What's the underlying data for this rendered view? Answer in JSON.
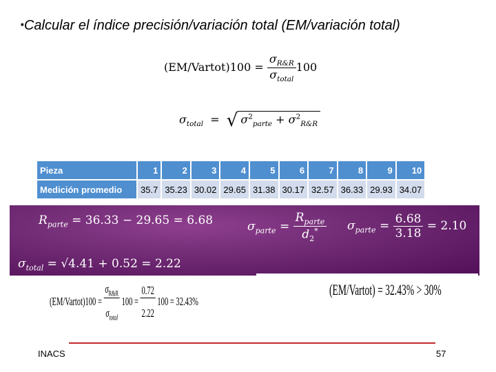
{
  "title": {
    "bullet": "▪",
    "text": "Calcular el índice precisión/variación total (EM/variación total)"
  },
  "formula1": {
    "lhs": "(EM/Vartot)100 =",
    "num": "σ",
    "num_sub": "R&R",
    "den": "σ",
    "den_sub": "total",
    "factor": "100"
  },
  "formula2": {
    "lhs": "σ",
    "lhs_sub": "total",
    "eq": "=",
    "t1": "σ",
    "t1_sub": "parte",
    "t1_sup": "2",
    "plus": "+",
    "t2": "σ",
    "t2_sub": "R&R",
    "t2_sup": "2"
  },
  "table": {
    "header": [
      "Pieza",
      "1",
      "2",
      "3",
      "4",
      "5",
      "6",
      "7",
      "8",
      "9",
      "10"
    ],
    "row": [
      "Medición promedio",
      "35.7",
      "35.23",
      "30.02",
      "29.65",
      "31.38",
      "30.17",
      "32.57",
      "36.33",
      "29.93",
      "34.07"
    ]
  },
  "band": {
    "rparte": "= 36.33 − 29.65 = 6.68",
    "sigma_parte_def_num": "R",
    "sigma_parte_def_den": "d",
    "d_sub": "2",
    "d_sup": "*",
    "sigma_parte_num": "6.68",
    "sigma_parte_den": "3.18",
    "sigma_parte_val": "= 2.10",
    "sigma_total": "= √4.41 + 0.52 = 2.22",
    "sub_parte": "parte",
    "sub_total": "total",
    "eq": "="
  },
  "result": {
    "lhs": "(EM/Vartot)100 =",
    "num_sub": "R&R",
    "den_sub": "total",
    "mid": "100 =",
    "num2": "0.72",
    "den2": "2.22",
    "end": "100 = 32.43%"
  },
  "conclusion": "(EM/Vartot) = 32.43% > 30%",
  "footer": {
    "left": "INACS",
    "page": "57"
  },
  "colors": {
    "table_header": "#4f8fd0",
    "table_cell": "#d3dcec",
    "band": "#6f2a73",
    "line": "#c0282d"
  }
}
